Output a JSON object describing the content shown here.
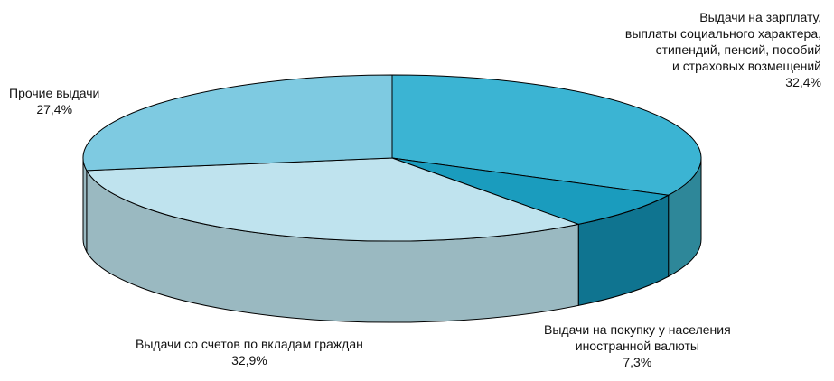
{
  "chart_data": {
    "type": "pie",
    "title": "",
    "categories": [
      "Выдачи на зарплату, выплаты социального характера, стипендий, пенсий, пособий и страховых возмещений",
      "Выдачи на покупку у населения иностранной валюты",
      "Выдачи со счетов по вкладам граждан",
      "Прочие выдачи"
    ],
    "values": [
      32.4,
      7.3,
      32.9,
      27.4
    ],
    "unit": "%",
    "colors": [
      "#3BB4D3",
      "#1A9CBE",
      "#BFE3EE",
      "#7ECAE1"
    ],
    "side_colors": [
      "#2E8799",
      "#0F7490",
      "#9AB9C1",
      "#9AB9C1"
    ],
    "style": "3d-pie",
    "legend": "none",
    "labels": [
      {
        "lines": [
          "Выдачи на зарплату,",
          "выплаты социального характера,",
          "стипендий, пенсий, пособий",
          "и страховых возмещений"
        ],
        "value_text": "32,4%"
      },
      {
        "lines": [
          "Выдачи на покупку у населения",
          "иностранной валюты"
        ],
        "value_text": "7,3%"
      },
      {
        "lines": [
          "Выдачи со счетов по вкладам граждан"
        ],
        "value_text": "32,9%"
      },
      {
        "lines": [
          "Прочие выдачи"
        ],
        "value_text": "27,4%"
      }
    ]
  }
}
